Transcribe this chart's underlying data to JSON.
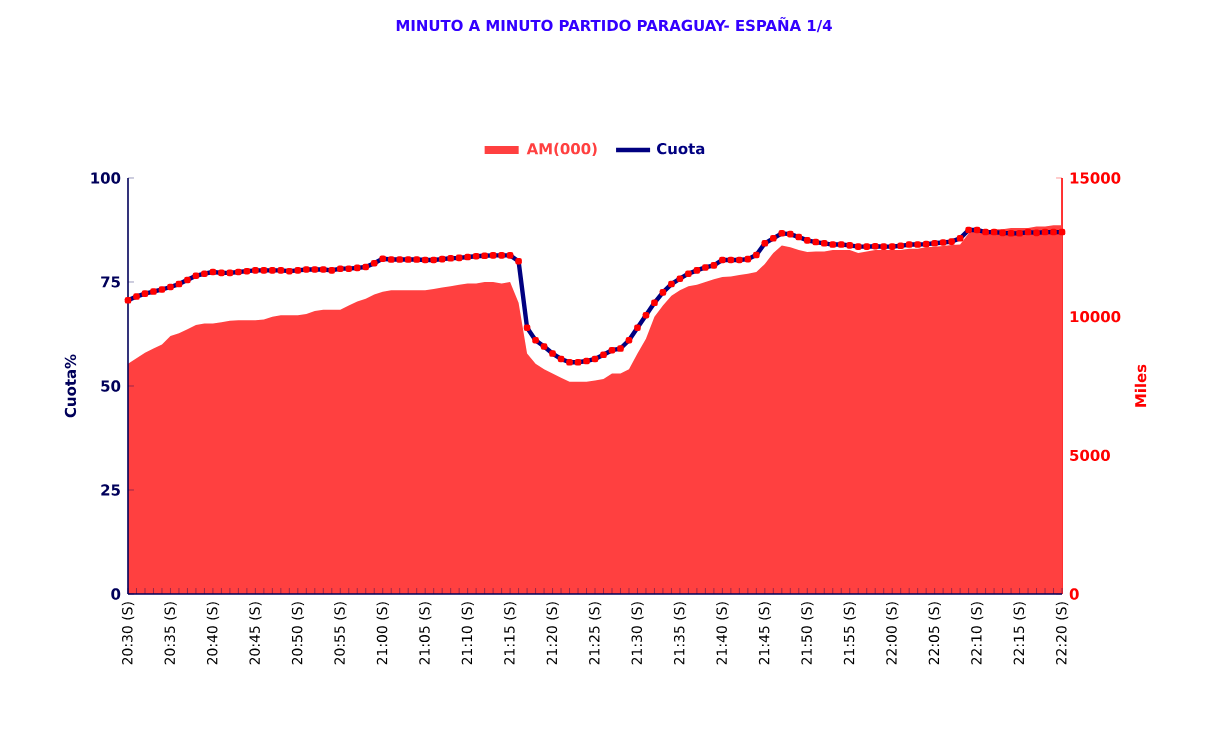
{
  "chart_data": {
    "type": "line",
    "title": "MINUTO A MINUTO PARTIDO PARAGUAY- ESPAÑA 1/4",
    "ylabel": "Cuota%",
    "y2label": "Miles",
    "categories": [
      "20:30 (S)",
      null,
      null,
      null,
      null,
      "20:35 (S)",
      null,
      null,
      null,
      null,
      "20:40 (S)",
      null,
      null,
      null,
      null,
      "20:45 (S)",
      null,
      null,
      null,
      null,
      "20:50 (S)",
      null,
      null,
      null,
      null,
      "20:55 (S)",
      null,
      null,
      null,
      null,
      "21:00 (S)",
      null,
      null,
      null,
      null,
      "21:05 (S)",
      null,
      null,
      null,
      null,
      "21:10 (S)",
      null,
      null,
      null,
      null,
      "21:15 (S)",
      null,
      null,
      null,
      null,
      "21:20 (S)",
      null,
      null,
      null,
      null,
      "21:25 (S)",
      null,
      null,
      null,
      null,
      "21:30 (S)",
      null,
      null,
      null,
      null,
      "21:35 (S)",
      null,
      null,
      null,
      null,
      "21:40 (S)",
      null,
      null,
      null,
      null,
      "21:45 (S)",
      null,
      null,
      null,
      null,
      "21:50 (S)",
      null,
      null,
      null,
      null,
      "21:55 (S)",
      null,
      null,
      null,
      null,
      "22:00 (S)",
      null,
      null,
      null,
      null,
      "22:05 (S)",
      null,
      null,
      null,
      null,
      "22:10 (S)",
      null,
      null,
      null,
      null,
      "22:15 (S)",
      null,
      null,
      null,
      null,
      "22:20 (S)"
    ],
    "series": [
      {
        "name": "AM(000)",
        "type": "area",
        "axis": "y2",
        "color": "#ff4040",
        "values": [
          8300,
          8500,
          8700,
          8850,
          9000,
          9300,
          9400,
          9550,
          9700,
          9750,
          9750,
          9800,
          9850,
          9870,
          9870,
          9870,
          9900,
          10000,
          10050,
          10050,
          10050,
          10100,
          10200,
          10250,
          10250,
          10250,
          10400,
          10550,
          10650,
          10800,
          10900,
          10950,
          10950,
          10950,
          10950,
          10950,
          11000,
          11050,
          11100,
          11150,
          11200,
          11200,
          11250,
          11250,
          11200,
          11250,
          10500,
          8670,
          8300,
          8100,
          7950,
          7800,
          7650,
          7650,
          7650,
          7700,
          7750,
          7950,
          7950,
          8100,
          8670,
          9200,
          10000,
          10400,
          10750,
          10950,
          11100,
          11150,
          11250,
          11350,
          11430,
          11450,
          11500,
          11550,
          11610,
          11900,
          12300,
          12570,
          12500,
          12400,
          12330,
          12350,
          12350,
          12400,
          12400,
          12400,
          12300,
          12350,
          12400,
          12400,
          12400,
          12400,
          12450,
          12450,
          12500,
          12520,
          12550,
          12580,
          12600,
          13000,
          13130,
          13100,
          13150,
          13150,
          13200,
          13200,
          13200,
          13250,
          13250,
          13300,
          13300
        ]
      },
      {
        "name": "Cuota",
        "type": "line",
        "color": "#000080",
        "marker": "square",
        "values": [
          70.6,
          71.5,
          72.2,
          72.7,
          73.2,
          73.8,
          74.5,
          75.5,
          76.5,
          77,
          77.4,
          77.2,
          77.2,
          77.4,
          77.6,
          77.8,
          77.8,
          77.8,
          77.8,
          77.6,
          77.8,
          78,
          78,
          78,
          77.8,
          78.2,
          78.2,
          78.4,
          78.6,
          79.5,
          80.6,
          80.4,
          80.4,
          80.4,
          80.4,
          80.3,
          80.3,
          80.5,
          80.7,
          80.8,
          81,
          81.2,
          81.3,
          81.4,
          81.4,
          81.4,
          80,
          64,
          61,
          59.5,
          57.8,
          56.5,
          55.7,
          55.7,
          56,
          56.5,
          57.5,
          58.6,
          59,
          61,
          64,
          67,
          70,
          72.5,
          74.5,
          75.8,
          77,
          77.8,
          78.5,
          79,
          80.3,
          80.3,
          80.3,
          80.5,
          81.5,
          84.3,
          85.5,
          86.7,
          86.5,
          85.8,
          85,
          84.6,
          84.3,
          84,
          84,
          83.8,
          83.5,
          83.5,
          83.6,
          83.5,
          83.5,
          83.7,
          84,
          84,
          84.1,
          84.3,
          84.5,
          84.7,
          85.5,
          87.5,
          87.5,
          87,
          87,
          86.8,
          86.7,
          86.7,
          87,
          86.8,
          87,
          87,
          87
        ]
      }
    ],
    "ylim": [
      0,
      100
    ],
    "yticks": [
      0,
      25,
      50,
      75,
      100
    ],
    "y2lim": [
      0,
      15000
    ],
    "y2ticks": [
      0,
      5000,
      10000,
      15000
    ],
    "legend": "top"
  }
}
